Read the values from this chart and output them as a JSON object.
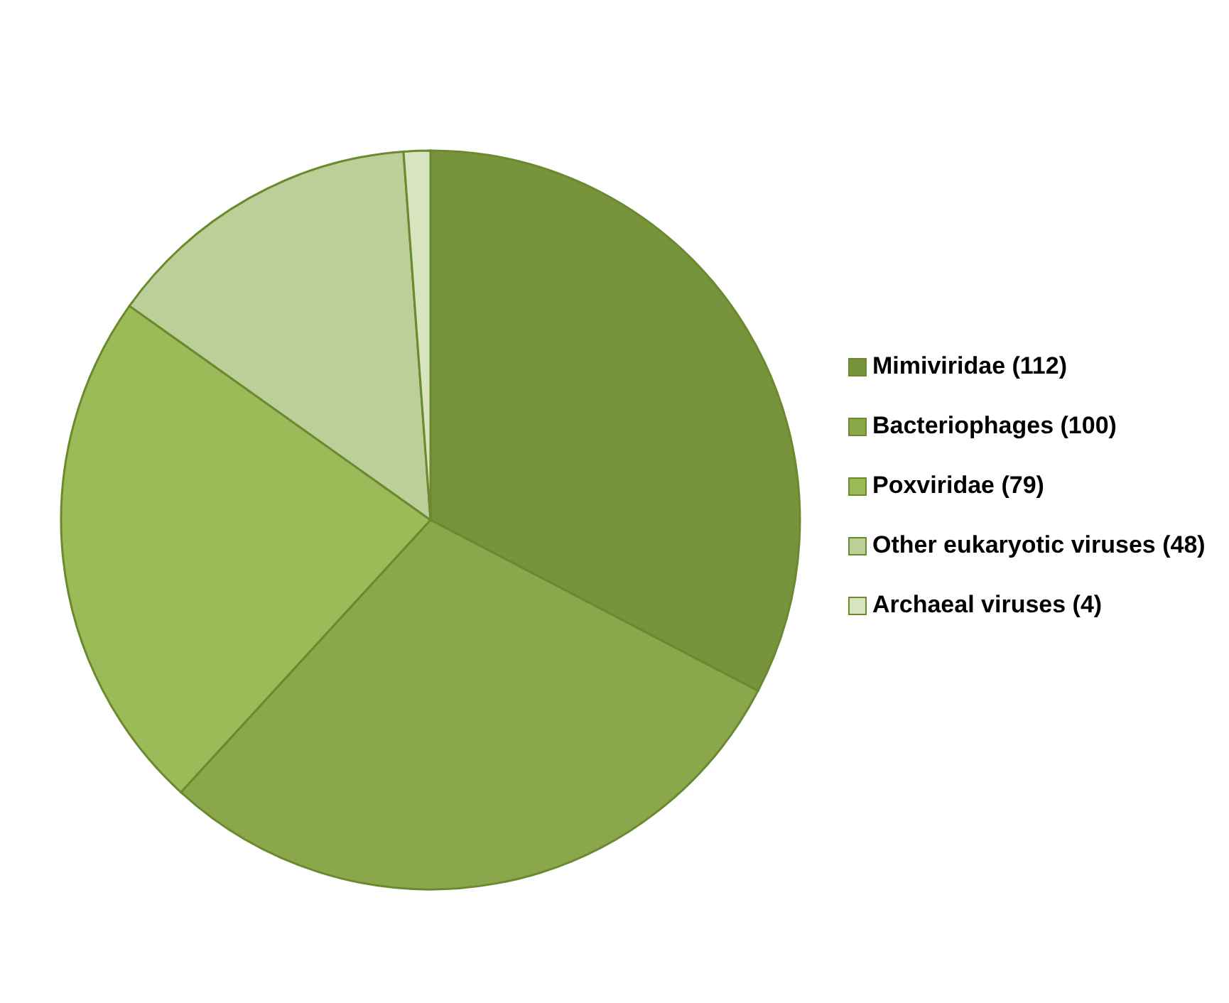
{
  "chart_data": {
    "type": "pie",
    "categories": [
      "Mimiviridae (112)",
      "Bacteriophages (100)",
      "Poxviridae (79)",
      "Other eukaryotic viruses (48)",
      "Archaeal viruses (4)"
    ],
    "values": [
      112,
      100,
      79,
      48,
      4
    ],
    "colors": [
      "#77933c",
      "#8aa84b",
      "#9bbb59",
      "#bccf99",
      "#d7e4bd"
    ],
    "legend": "right"
  }
}
